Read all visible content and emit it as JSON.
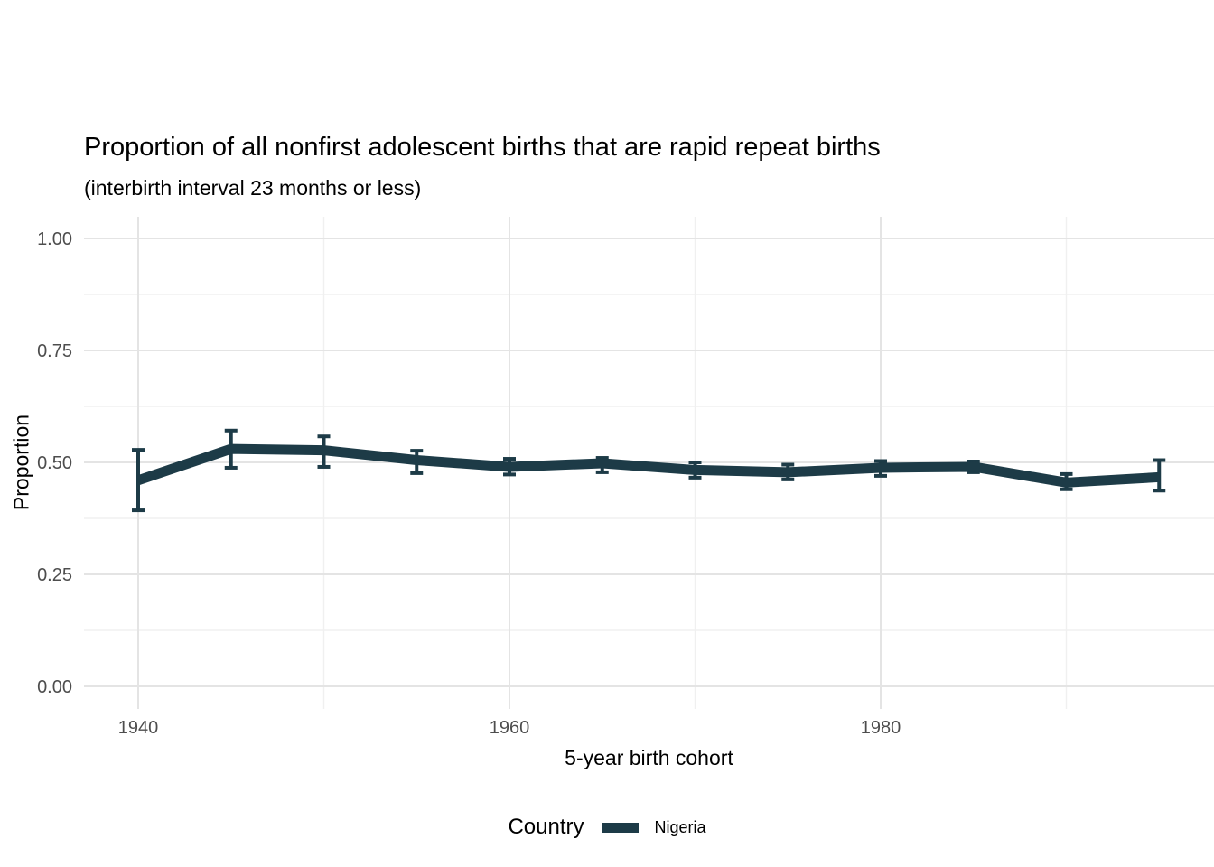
{
  "chart_data": {
    "type": "line",
    "title": "Proportion of all nonfirst adolescent births that are rapid repeat births",
    "subtitle": "(interbirth interval 23 months or less)",
    "xlabel": "5-year birth cohort",
    "ylabel": "Proportion",
    "xlim": [
      1937,
      1998
    ],
    "ylim": [
      0,
      1
    ],
    "grid": true,
    "x_ticks": [
      1940,
      1960,
      1980
    ],
    "x_tick_labels": [
      "1940",
      "1960",
      "1980"
    ],
    "x_minor_ticks": [
      1950,
      1970,
      1990
    ],
    "y_ticks": [
      0,
      0.25,
      0.5,
      0.75,
      1
    ],
    "y_tick_labels": [
      "0.00",
      "0.25",
      "0.50",
      "0.75",
      "1.00"
    ],
    "y_minor_ticks": [
      0.125,
      0.375,
      0.625,
      0.875
    ],
    "legend": {
      "title": "Country",
      "position": "bottom",
      "entries": [
        {
          "label": "Nigeria",
          "color": "#1d3b47"
        }
      ]
    },
    "series": [
      {
        "name": "Nigeria",
        "color": "#1d3b47",
        "x": [
          1940,
          1945,
          1950,
          1955,
          1960,
          1965,
          1970,
          1975,
          1980,
          1985,
          1990,
          1995
        ],
        "y": [
          0.46,
          0.53,
          0.527,
          0.505,
          0.49,
          0.498,
          0.483,
          0.478,
          0.488,
          0.49,
          0.455,
          0.467
        ],
        "ci_lower": [
          0.393,
          0.488,
          0.49,
          0.476,
          0.473,
          0.478,
          0.466,
          0.462,
          0.47,
          0.478,
          0.44,
          0.437
        ],
        "ci_upper": [
          0.528,
          0.571,
          0.558,
          0.526,
          0.508,
          0.51,
          0.5,
          0.495,
          0.503,
          0.502,
          0.474,
          0.505
        ]
      }
    ]
  },
  "colors": {
    "background": "#ffffff",
    "grid_major": "#e4e4e4",
    "grid_minor": "#f0f0f0",
    "axis_text": "#4d4d4d",
    "title_text": "#000000"
  }
}
